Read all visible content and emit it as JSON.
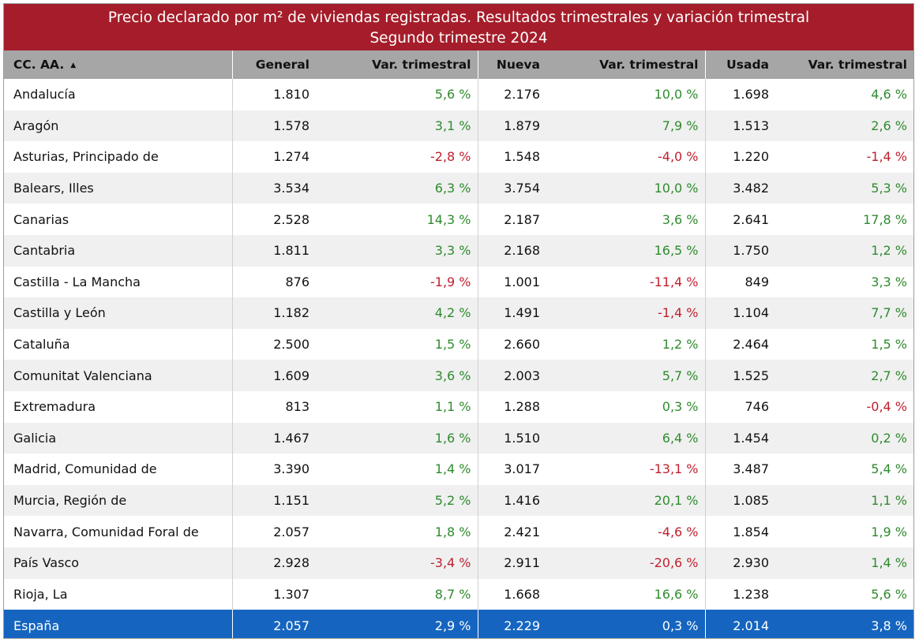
{
  "title": {
    "line1": "Precio declarado por m² de viviendas registradas. Resultados trimestrales y variación trimestral",
    "line2": "Segundo trimestre 2024"
  },
  "columns": [
    "CC. AA.",
    "General",
    "Var. trimestral",
    "Nueva",
    "Var. trimestral",
    "Usada",
    "Var. trimestral"
  ],
  "sort_indicator": "▲",
  "colors": {
    "header_red": "#a51d2a",
    "header_gray": "#a6a6a6",
    "total_blue": "#1565c0",
    "positive": "#2e8b2e",
    "negative": "#c0202f"
  },
  "rows": [
    {
      "name": "Andalucía",
      "general": "1.810",
      "var_general": "5,6 %",
      "nueva": "2.176",
      "var_nueva": "10,0 %",
      "usada": "1.698",
      "var_usada": "4,6 %"
    },
    {
      "name": "Aragón",
      "general": "1.578",
      "var_general": "3,1 %",
      "nueva": "1.879",
      "var_nueva": "7,9 %",
      "usada": "1.513",
      "var_usada": "2,6 %"
    },
    {
      "name": "Asturias, Principado de",
      "general": "1.274",
      "var_general": "-2,8 %",
      "nueva": "1.548",
      "var_nueva": "-4,0 %",
      "usada": "1.220",
      "var_usada": "-1,4 %"
    },
    {
      "name": "Balears, Illes",
      "general": "3.534",
      "var_general": "6,3 %",
      "nueva": "3.754",
      "var_nueva": "10,0 %",
      "usada": "3.482",
      "var_usada": "5,3 %"
    },
    {
      "name": "Canarias",
      "general": "2.528",
      "var_general": "14,3 %",
      "nueva": "2.187",
      "var_nueva": "3,6 %",
      "usada": "2.641",
      "var_usada": "17,8 %"
    },
    {
      "name": "Cantabria",
      "general": "1.811",
      "var_general": "3,3 %",
      "nueva": "2.168",
      "var_nueva": "16,5 %",
      "usada": "1.750",
      "var_usada": "1,2 %"
    },
    {
      "name": "Castilla - La Mancha",
      "general": "876",
      "var_general": "-1,9 %",
      "nueva": "1.001",
      "var_nueva": "-11,4 %",
      "usada": "849",
      "var_usada": "3,3 %"
    },
    {
      "name": "Castilla y León",
      "general": "1.182",
      "var_general": "4,2 %",
      "nueva": "1.491",
      "var_nueva": "-1,4 %",
      "usada": "1.104",
      "var_usada": "7,7 %"
    },
    {
      "name": "Cataluña",
      "general": "2.500",
      "var_general": "1,5 %",
      "nueva": "2.660",
      "var_nueva": "1,2 %",
      "usada": "2.464",
      "var_usada": "1,5 %"
    },
    {
      "name": "Comunitat Valenciana",
      "general": "1.609",
      "var_general": "3,6 %",
      "nueva": "2.003",
      "var_nueva": "5,7 %",
      "usada": "1.525",
      "var_usada": "2,7 %"
    },
    {
      "name": "Extremadura",
      "general": "813",
      "var_general": "1,1 %",
      "nueva": "1.288",
      "var_nueva": "0,3 %",
      "usada": "746",
      "var_usada": "-0,4 %"
    },
    {
      "name": "Galicia",
      "general": "1.467",
      "var_general": "1,6 %",
      "nueva": "1.510",
      "var_nueva": "6,4 %",
      "usada": "1.454",
      "var_usada": "0,2 %"
    },
    {
      "name": "Madrid, Comunidad de",
      "general": "3.390",
      "var_general": "1,4 %",
      "nueva": "3.017",
      "var_nueva": "-13,1 %",
      "usada": "3.487",
      "var_usada": "5,4 %"
    },
    {
      "name": "Murcia, Región de",
      "general": "1.151",
      "var_general": "5,2 %",
      "nueva": "1.416",
      "var_nueva": "20,1 %",
      "usada": "1.085",
      "var_usada": "1,1 %"
    },
    {
      "name": "Navarra, Comunidad Foral de",
      "general": "2.057",
      "var_general": "1,8 %",
      "nueva": "2.421",
      "var_nueva": "-4,6 %",
      "usada": "1.854",
      "var_usada": "1,9 %"
    },
    {
      "name": "País Vasco",
      "general": "2.928",
      "var_general": "-3,4 %",
      "nueva": "2.911",
      "var_nueva": "-20,6 %",
      "usada": "2.930",
      "var_usada": "1,4 %"
    },
    {
      "name": "Rioja, La",
      "general": "1.307",
      "var_general": "8,7 %",
      "nueva": "1.668",
      "var_nueva": "16,6 %",
      "usada": "1.238",
      "var_usada": "5,6 %"
    }
  ],
  "total": {
    "name": "España",
    "general": "2.057",
    "var_general": "2,9 %",
    "nueva": "2.229",
    "var_nueva": "0,3 %",
    "usada": "2.014",
    "var_usada": "3,8 %"
  },
  "chart_data": {
    "type": "table",
    "title": "Precio declarado por m² de viviendas registradas. Resultados trimestrales y variación trimestral",
    "subtitle": "Segundo trimestre 2024",
    "columns": [
      "CC. AA.",
      "General",
      "Var. trimestral",
      "Nueva",
      "Var. trimestral",
      "Usada",
      "Var. trimestral"
    ],
    "rows": [
      [
        "Andalucía",
        1810,
        5.6,
        2176,
        10.0,
        1698,
        4.6
      ],
      [
        "Aragón",
        1578,
        3.1,
        1879,
        7.9,
        1513,
        2.6
      ],
      [
        "Asturias, Principado de",
        1274,
        -2.8,
        1548,
        -4.0,
        1220,
        -1.4
      ],
      [
        "Balears, Illes",
        3534,
        6.3,
        3754,
        10.0,
        3482,
        5.3
      ],
      [
        "Canarias",
        2528,
        14.3,
        2187,
        3.6,
        2641,
        17.8
      ],
      [
        "Cantabria",
        1811,
        3.3,
        2168,
        16.5,
        1750,
        1.2
      ],
      [
        "Castilla - La Mancha",
        876,
        -1.9,
        1001,
        -11.4,
        849,
        3.3
      ],
      [
        "Castilla y León",
        1182,
        4.2,
        1491,
        -1.4,
        1104,
        7.7
      ],
      [
        "Cataluña",
        2500,
        1.5,
        2660,
        1.2,
        2464,
        1.5
      ],
      [
        "Comunitat Valenciana",
        1609,
        3.6,
        2003,
        5.7,
        1525,
        2.7
      ],
      [
        "Extremadura",
        813,
        1.1,
        1288,
        0.3,
        746,
        -0.4
      ],
      [
        "Galicia",
        1467,
        1.6,
        1510,
        6.4,
        1454,
        0.2
      ],
      [
        "Madrid, Comunidad de",
        3390,
        1.4,
        3017,
        -13.1,
        3487,
        5.4
      ],
      [
        "Murcia, Región de",
        1151,
        5.2,
        1416,
        20.1,
        1085,
        1.1
      ],
      [
        "Navarra, Comunidad Foral de",
        2057,
        1.8,
        2421,
        -4.6,
        1854,
        1.9
      ],
      [
        "País Vasco",
        2928,
        -3.4,
        2911,
        -20.6,
        2930,
        1.4
      ],
      [
        "Rioja, La",
        1307,
        8.7,
        1668,
        16.6,
        1238,
        5.6
      ],
      [
        "España",
        2057,
        2.9,
        2229,
        0.3,
        2014,
        3.8
      ]
    ]
  }
}
